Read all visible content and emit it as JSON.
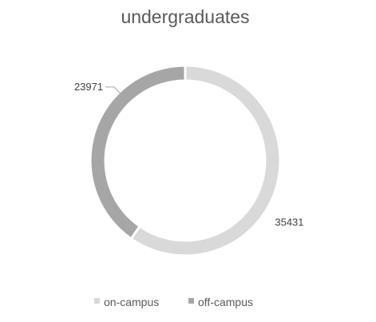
{
  "chart_data": {
    "type": "pie",
    "variant": "doughnut",
    "title": "undergraduates",
    "categories": [
      "on-campus",
      "off-campus"
    ],
    "values": [
      35431,
      23971
    ],
    "colors": [
      "#d9d9d9",
      "#a6a6a6"
    ],
    "legend_position": "bottom",
    "start_angle": "top, clockwise"
  }
}
